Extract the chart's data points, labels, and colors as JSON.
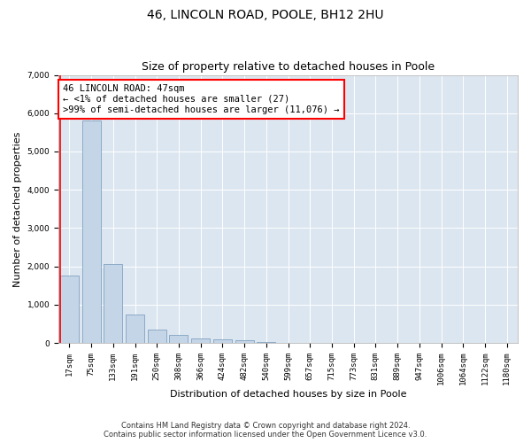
{
  "title_line1": "46, LINCOLN ROAD, POOLE, BH12 2HU",
  "title_line2": "Size of property relative to detached houses in Poole",
  "xlabel": "Distribution of detached houses by size in Poole",
  "ylabel": "Number of detached properties",
  "categories": [
    "17sqm",
    "75sqm",
    "133sqm",
    "191sqm",
    "250sqm",
    "308sqm",
    "366sqm",
    "424sqm",
    "482sqm",
    "540sqm",
    "599sqm",
    "657sqm",
    "715sqm",
    "773sqm",
    "831sqm",
    "889sqm",
    "947sqm",
    "1006sqm",
    "1064sqm",
    "1122sqm",
    "1180sqm"
  ],
  "values": [
    1750,
    5800,
    2050,
    750,
    350,
    200,
    120,
    100,
    80,
    30,
    10,
    0,
    0,
    0,
    0,
    0,
    0,
    0,
    0,
    0,
    0
  ],
  "bar_color": "#c5d5e8",
  "bar_edge_color": "#7096b8",
  "highlight_color": "#ff0000",
  "annotation_text": "46 LINCOLN ROAD: 47sqm\n← <1% of detached houses are smaller (27)\n>99% of semi-detached houses are larger (11,076) →",
  "annotation_box_color": "#ffffff",
  "annotation_box_edge": "#ff0000",
  "vline_color": "#ff0000",
  "ylim": [
    0,
    7000
  ],
  "yticks": [
    0,
    1000,
    2000,
    3000,
    4000,
    5000,
    6000,
    7000
  ],
  "footer_line1": "Contains HM Land Registry data © Crown copyright and database right 2024.",
  "footer_line2": "Contains public sector information licensed under the Open Government Licence v3.0.",
  "background_color": "#ffffff",
  "plot_bg_color": "#dce6f0",
  "grid_color": "#ffffff",
  "fig_width": 6.0,
  "fig_height": 5.0,
  "title_fontsize": 10,
  "subtitle_fontsize": 9,
  "axis_label_fontsize": 8,
  "tick_fontsize": 6.5,
  "annotation_fontsize": 7.5,
  "footer_fontsize": 6
}
